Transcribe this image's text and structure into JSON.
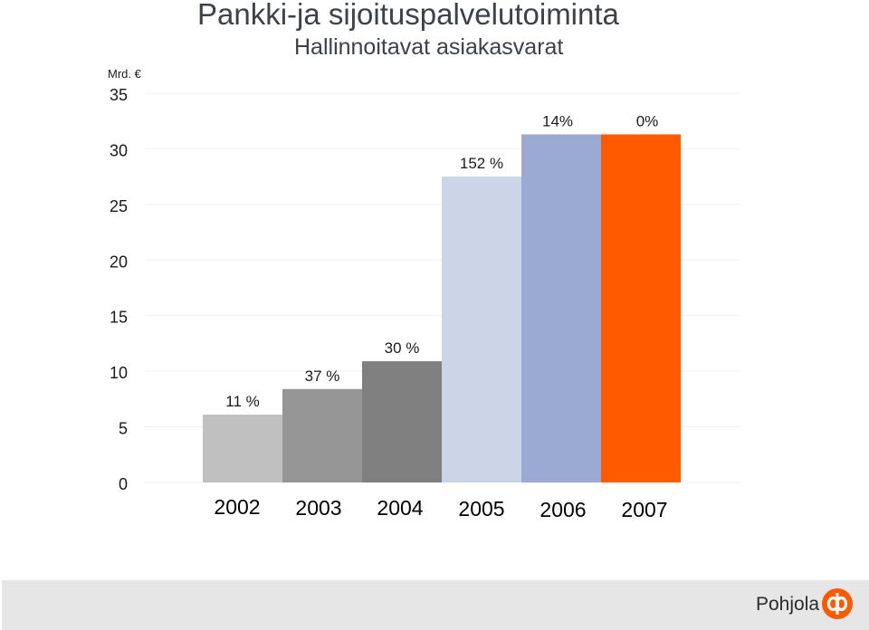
{
  "title": "Pankki-ja sijoituspalvelutoiminta",
  "subtitle": "Hallinnoitavat asiakasvarat",
  "footer": {
    "brand": "Pohjola"
  },
  "colors": {
    "title": "#3d4148",
    "brand_orange": "#ff5a00",
    "footer_bg": "#e6e6e6"
  },
  "chart_data": {
    "type": "bar",
    "ylabel": "Mrd. €",
    "ylim": [
      0,
      35
    ],
    "yticks": [
      "0",
      "5",
      "10",
      "15",
      "20",
      "25",
      "30",
      "35"
    ],
    "grid": true,
    "categories": [
      "2002",
      "2003",
      "2004",
      "2005",
      "2006",
      "2007"
    ],
    "values": [
      6.1,
      8.4,
      10.9,
      27.5,
      31.3,
      31.3
    ],
    "labels": [
      "11 %",
      "37 %",
      "30 %",
      "152 %",
      "14%",
      "0%"
    ],
    "colors": [
      "#c0c0c0",
      "#969696",
      "#808080",
      "#ccd4e8",
      "#9aaad2",
      "#ff5a00"
    ]
  }
}
